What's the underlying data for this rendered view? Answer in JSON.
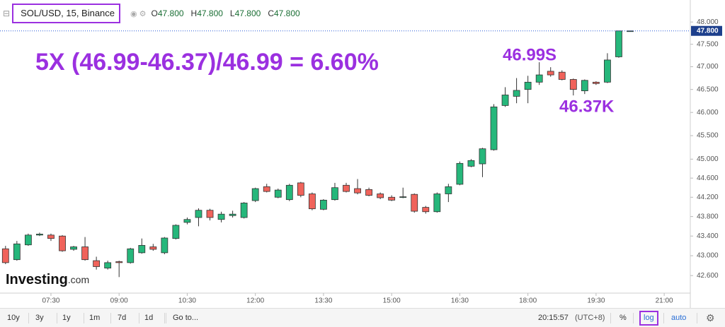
{
  "header": {
    "symbol": "SOL/USD, 15, Binance",
    "ohlc": [
      {
        "key": "O",
        "value": "47.800"
      },
      {
        "key": "H",
        "value": "47.800"
      },
      {
        "key": "L",
        "value": "47.800"
      },
      {
        "key": "C",
        "value": "47.800"
      }
    ]
  },
  "annotations": {
    "formula": "5X (46.99-46.37)/46.99 = 6.60%",
    "high_note": "46.99S",
    "low_note": "46.37K"
  },
  "logo": {
    "name": "Investing",
    "suffix": ".com"
  },
  "toolbar": {
    "ranges": [
      "10y",
      "3y",
      "1y",
      "1m",
      "7d",
      "1d"
    ],
    "goto": "Go to...",
    "time": "20:15:57",
    "timezone": "(UTC+8)",
    "percent": "%",
    "log": "log",
    "auto": "auto"
  },
  "chart_data": {
    "type": "candlestick",
    "log": true,
    "grid": false,
    "up_color": "#26b77b",
    "down_color": "#f0635b",
    "categories": [
      null,
      null,
      null,
      null,
      "07:30",
      null,
      null,
      null,
      null,
      null,
      "09:00",
      null,
      null,
      null,
      null,
      null,
      "10:30",
      null,
      null,
      null,
      null,
      null,
      "12:00",
      null,
      null,
      null,
      null,
      null,
      "13:30",
      null,
      null,
      null,
      null,
      null,
      "15:00",
      null,
      null,
      null,
      null,
      null,
      "16:30",
      null,
      null,
      null,
      null,
      null,
      "18:00",
      null,
      null,
      null,
      null,
      null,
      "19:30",
      null,
      null,
      null,
      null,
      null,
      "21:00"
    ],
    "open": [
      43.14,
      42.92,
      43.22,
      43.42,
      43.42,
      43.4,
      43.13,
      43.18,
      42.9,
      42.75,
      42.88,
      42.86,
      43.06,
      43.18,
      43.06,
      43.35,
      43.68,
      43.78,
      43.93,
      43.74,
      43.82,
      43.78,
      44.13,
      44.42,
      44.2,
      44.15,
      44.5,
      44.27,
      43.95,
      44.15,
      44.45,
      44.38,
      44.36,
      44.27,
      44.2,
      44.2,
      44.26,
      43.99,
      43.9,
      44.27,
      44.47,
      44.85,
      44.9,
      45.2,
      46.15,
      46.35,
      46.5,
      46.66,
      46.9,
      46.88,
      46.72,
      46.47,
      46.66,
      46.66,
      47.22,
      47.8,
      null,
      null,
      null
    ],
    "high": [
      43.2,
      43.3,
      43.45,
      43.47,
      43.45,
      43.42,
      43.2,
      43.38,
      42.98,
      42.9,
      42.9,
      43.16,
      43.35,
      43.24,
      43.38,
      43.64,
      43.78,
      43.97,
      43.96,
      43.9,
      43.92,
      44.1,
      44.4,
      44.48,
      44.38,
      44.48,
      44.52,
      44.3,
      44.16,
      44.5,
      44.5,
      44.58,
      44.4,
      44.3,
      44.24,
      44.4,
      44.28,
      44.02,
      44.3,
      44.48,
      44.95,
      45.0,
      45.24,
      46.18,
      46.55,
      46.75,
      46.8,
      47.1,
      46.99,
      46.92,
      46.74,
      46.72,
      46.68,
      47.3,
      47.8,
      47.8,
      null,
      null,
      null
    ],
    "low": [
      42.83,
      42.9,
      43.2,
      43.4,
      43.3,
      43.08,
      43.1,
      42.9,
      42.72,
      42.72,
      42.57,
      42.84,
      43.04,
      43.1,
      43.03,
      43.33,
      43.64,
      43.6,
      43.72,
      43.68,
      43.78,
      43.76,
      44.1,
      44.3,
      44.18,
      44.12,
      44.2,
      43.93,
      43.93,
      44.13,
      44.3,
      44.26,
      44.22,
      44.16,
      44.12,
      44.18,
      43.88,
      43.86,
      43.88,
      44.1,
      44.45,
      44.83,
      44.62,
      45.18,
      46.12,
      46.2,
      46.2,
      46.6,
      46.78,
      46.7,
      46.37,
      46.4,
      46.6,
      46.64,
      47.2,
      47.8,
      null,
      null,
      null
    ],
    "close": [
      42.86,
      43.24,
      43.42,
      43.44,
      43.35,
      43.1,
      43.18,
      42.92,
      42.78,
      42.86,
      42.86,
      43.14,
      43.21,
      43.13,
      43.36,
      43.62,
      43.74,
      43.93,
      43.78,
      43.85,
      43.85,
      44.08,
      44.38,
      44.32,
      44.35,
      44.45,
      44.24,
      43.96,
      44.14,
      44.4,
      44.32,
      44.29,
      44.24,
      44.19,
      44.14,
      44.21,
      43.91,
      43.9,
      44.27,
      44.42,
      44.91,
      44.97,
      45.22,
      46.12,
      46.38,
      46.48,
      46.66,
      46.82,
      46.82,
      46.72,
      46.5,
      46.7,
      46.63,
      47.15,
      47.8,
      47.8,
      null,
      null,
      null
    ],
    "ylim": [
      42.25,
      48.5
    ],
    "yticks": [
      {
        "value": 42.6,
        "label": "42.600"
      },
      {
        "value": 43,
        "label": "43.000"
      },
      {
        "value": 43.4,
        "label": "43.400"
      },
      {
        "value": 43.8,
        "label": "43.800"
      },
      {
        "value": 44.2,
        "label": "44.200"
      },
      {
        "value": 44.6,
        "label": "44.600"
      },
      {
        "value": 45,
        "label": "45.000"
      },
      {
        "value": 45.5,
        "label": "45.500"
      },
      {
        "value": 46,
        "label": "46.000"
      },
      {
        "value": 46.5,
        "label": "46.500"
      },
      {
        "value": 47,
        "label": "47.000"
      },
      {
        "value": 47.5,
        "label": "47.500"
      },
      {
        "value": 48,
        "label": "48.000"
      }
    ],
    "last_price": {
      "value": 47.8,
      "label": "47.800"
    }
  }
}
